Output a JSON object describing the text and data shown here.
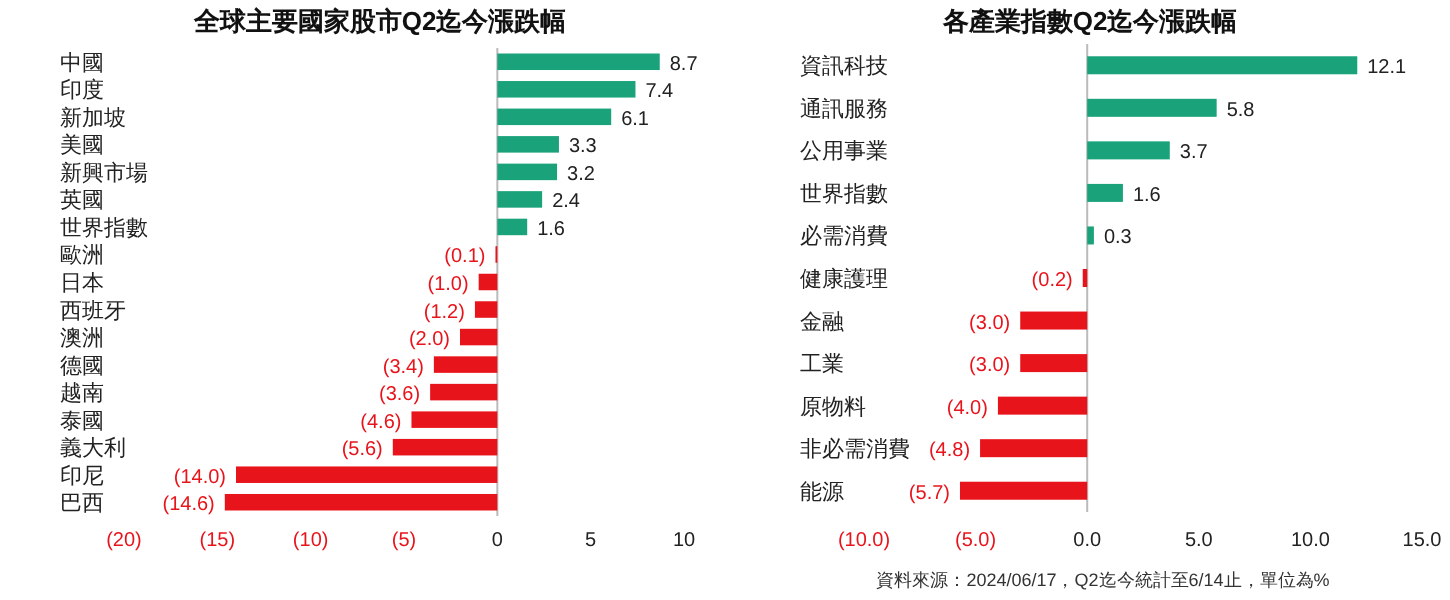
{
  "chart_data": [
    {
      "type": "bar",
      "orientation": "horizontal",
      "title": "全球主要國家股市Q2迄今漲跌幅",
      "categories": [
        "中國",
        "印度",
        "新加坡",
        "美國",
        "新興市場",
        "英國",
        "世界指數",
        "歐洲",
        "日本",
        "西班牙",
        "澳洲",
        "德國",
        "越南",
        "泰國",
        "義大利",
        "印尼",
        "巴西"
      ],
      "values": [
        8.7,
        7.4,
        6.1,
        3.3,
        3.2,
        2.4,
        1.6,
        -0.1,
        -1.0,
        -1.2,
        -2.0,
        -3.4,
        -3.6,
        -4.6,
        -5.6,
        -14.0,
        -14.6
      ],
      "value_labels": [
        "8.7",
        "7.4",
        "6.1",
        "3.3",
        "3.2",
        "2.4",
        "1.6",
        "(0.1)",
        "(1.0)",
        "(1.2)",
        "(2.0)",
        "(3.4)",
        "(3.6)",
        "(4.6)",
        "(5.6)",
        "(14.0)",
        "(14.6)"
      ],
      "colors": [
        "#1aa37a",
        "#1aa37a",
        "#1aa37a",
        "#1aa37a",
        "#1aa37a",
        "#1aa37a",
        "#1aa37a",
        "#e8141b",
        "#e8141b",
        "#e8141b",
        "#e8141b",
        "#e8141b",
        "#e8141b",
        "#e8141b",
        "#e8141b",
        "#e8141b",
        "#e8141b"
      ],
      "xlim": [
        -20,
        10
      ],
      "xticks": [
        {
          "value": -20,
          "label": "(20)"
        },
        {
          "value": -15,
          "label": "(15)"
        },
        {
          "value": -10,
          "label": "(10)"
        },
        {
          "value": -5,
          "label": "(5)"
        },
        0,
        5,
        10
      ]
    },
    {
      "type": "bar",
      "orientation": "horizontal",
      "title": "各產業指數Q2迄今漲跌幅",
      "categories": [
        "資訊科技",
        "通訊服務",
        "公用事業",
        "世界指數",
        "必需消費",
        "健康護理",
        "金融",
        "工業",
        "原物料",
        "非必需消費",
        "能源"
      ],
      "values": [
        12.1,
        5.8,
        3.7,
        1.6,
        0.3,
        -0.2,
        -3.0,
        -3.0,
        -4.0,
        -4.8,
        -5.7
      ],
      "value_labels": [
        "12.1",
        "5.8",
        "3.7",
        "1.6",
        "0.3",
        "(0.2)",
        "(3.0)",
        "(3.0)",
        "(4.0)",
        "(4.8)",
        "(5.7)"
      ],
      "colors": [
        "#1aa37a",
        "#1aa37a",
        "#1aa37a",
        "#1aa37a",
        "#1aa37a",
        "#e8141b",
        "#e8141b",
        "#e8141b",
        "#e8141b",
        "#e8141b",
        "#e8141b"
      ],
      "xlim": [
        -10,
        15
      ],
      "xticks": [
        {
          "value": -10,
          "label": "(10.0)"
        },
        {
          "value": -5,
          "label": "(5.0)"
        },
        {
          "value": 0,
          "label": "0.0"
        },
        {
          "value": 5,
          "label": "5.0"
        },
        {
          "value": 10,
          "label": "10.0"
        },
        {
          "value": 15,
          "label": "15.0"
        }
      ],
      "annotations": [
        "資料來源：2024/06/17，Q2迄今統計至6/14止，單位為%"
      ]
    }
  ]
}
